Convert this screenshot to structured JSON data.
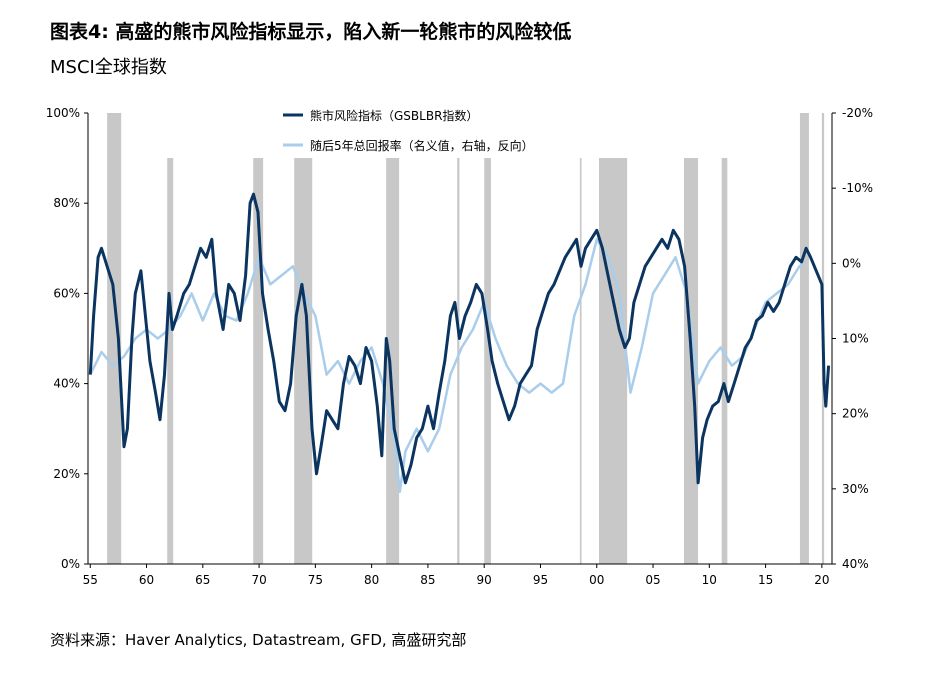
{
  "chart_data": {
    "type": "line",
    "title": "图表4: 高盛的熊市风险指标显示，陷入新一轮熊市的风险较低",
    "subtitle": "MSCI全球指数",
    "source": "资料来源：Haver Analytics, Datastream, GFD, 高盛研究部",
    "xlim": [
      1954.8,
      2020.9
    ],
    "xticks": [
      {
        "value": 1955,
        "label": "55"
      },
      {
        "value": 1960,
        "label": "60"
      },
      {
        "value": 1965,
        "label": "65"
      },
      {
        "value": 1970,
        "label": "70"
      },
      {
        "value": 1975,
        "label": "75"
      },
      {
        "value": 1980,
        "label": "80"
      },
      {
        "value": 1985,
        "label": "85"
      },
      {
        "value": 1990,
        "label": "90"
      },
      {
        "value": 1995,
        "label": "95"
      },
      {
        "value": 2000,
        "label": "00"
      },
      {
        "value": 2005,
        "label": "05"
      },
      {
        "value": 2010,
        "label": "10"
      },
      {
        "value": 2015,
        "label": "15"
      },
      {
        "value": 2020,
        "label": "20"
      }
    ],
    "ylim": [
      0,
      100
    ],
    "yticks": [
      {
        "value": 0,
        "label": "0%"
      },
      {
        "value": 20,
        "label": "20%"
      },
      {
        "value": 40,
        "label": "40%"
      },
      {
        "value": 60,
        "label": "60%"
      },
      {
        "value": 80,
        "label": "80%"
      },
      {
        "value": 100,
        "label": "100%"
      }
    ],
    "y2lim": [
      -20,
      40
    ],
    "y2_inverted": true,
    "y2ticks": [
      {
        "value": -20,
        "label": "-20%"
      },
      {
        "value": -10,
        "label": "-10%"
      },
      {
        "value": 0,
        "label": "0%"
      },
      {
        "value": 10,
        "label": "10%"
      },
      {
        "value": 20,
        "label": "20%"
      },
      {
        "value": 30,
        "label": "30%"
      },
      {
        "value": 40,
        "label": "40%"
      }
    ],
    "shade_color": "#c8c8c8",
    "shaded_periods": [
      [
        1956.5,
        1957.75
      ],
      [
        1961.84,
        1962.37
      ],
      [
        1969.48,
        1970.36
      ],
      [
        1973.12,
        1974.72
      ],
      [
        1981.29,
        1982.44
      ],
      [
        1987.6,
        1987.8
      ],
      [
        1990.0,
        1990.6
      ],
      [
        1998.5,
        1998.65
      ],
      [
        2000.2,
        2002.7
      ],
      [
        2007.75,
        2009.0
      ],
      [
        2011.1,
        2011.6
      ],
      [
        2018.05,
        2018.85
      ],
      [
        2020.0,
        2020.2
      ]
    ],
    "series": [
      {
        "name": "熊市风险指标（GSBLBR指数）",
        "color": "#0b3560",
        "x": [
          1955,
          1955.3,
          1955.7,
          1956,
          1956.5,
          1957,
          1957.5,
          1958,
          1958.3,
          1958.7,
          1959,
          1959.5,
          1959.9,
          1960.3,
          1960.8,
          1961.2,
          1961.6,
          1962,
          1962.3,
          1962.7,
          1963.3,
          1963.8,
          1964.3,
          1964.8,
          1965.3,
          1965.8,
          1966.2,
          1966.8,
          1967.3,
          1967.8,
          1968.3,
          1968.8,
          1969.2,
          1969.5,
          1969.9,
          1970.3,
          1970.8,
          1971.3,
          1971.8,
          1972.3,
          1972.8,
          1973.3,
          1973.8,
          1974.2,
          1974.7,
          1975.1,
          1975.5,
          1976,
          1976.5,
          1977,
          1977.5,
          1978,
          1978.5,
          1979,
          1979.5,
          1980,
          1980.5,
          1980.9,
          1981.3,
          1981.6,
          1982,
          1982.5,
          1983,
          1983.5,
          1984,
          1984.5,
          1985,
          1985.5,
          1986,
          1986.5,
          1987,
          1987.4,
          1987.8,
          1988.3,
          1988.8,
          1989.3,
          1989.8,
          1990.3,
          1990.7,
          1991.2,
          1991.7,
          1992.2,
          1992.7,
          1993.2,
          1993.7,
          1994.2,
          1994.7,
          1995.2,
          1995.7,
          1996.2,
          1996.7,
          1997.2,
          1997.7,
          1998.2,
          1998.6,
          1999,
          1999.5,
          2000,
          2000.5,
          2001,
          2001.5,
          2002,
          2002.5,
          2002.9,
          2003.3,
          2003.8,
          2004.3,
          2004.8,
          2005.3,
          2005.8,
          2006.3,
          2006.8,
          2007.3,
          2007.8,
          2008.3,
          2008.7,
          2009,
          2009.4,
          2009.8,
          2010.3,
          2010.8,
          2011.3,
          2011.7,
          2012.2,
          2012.7,
          2013.2,
          2013.7,
          2014.2,
          2014.7,
          2015.2,
          2015.7,
          2016.2,
          2016.7,
          2017.2,
          2017.7,
          2018.2,
          2018.6,
          2019,
          2019.5,
          2020,
          2020.2,
          2020.35,
          2020.6
        ],
        "values": [
          42,
          55,
          68,
          70,
          66,
          62,
          50,
          26,
          30,
          50,
          60,
          65,
          55,
          45,
          38,
          32,
          42,
          60,
          52,
          55,
          60,
          62,
          66,
          70,
          68,
          72,
          60,
          52,
          62,
          60,
          54,
          64,
          80,
          82,
          78,
          60,
          52,
          45,
          36,
          34,
          40,
          55,
          62,
          55,
          30,
          20,
          26,
          34,
          32,
          30,
          40,
          46,
          44,
          40,
          48,
          45,
          35,
          24,
          50,
          45,
          30,
          24,
          18,
          22,
          28,
          30,
          35,
          30,
          38,
          45,
          55,
          58,
          50,
          55,
          58,
          62,
          60,
          52,
          45,
          40,
          36,
          32,
          35,
          40,
          42,
          44,
          52,
          56,
          60,
          62,
          65,
          68,
          70,
          72,
          66,
          70,
          72,
          74,
          70,
          64,
          58,
          52,
          48,
          50,
          58,
          62,
          66,
          68,
          70,
          72,
          70,
          74,
          72,
          66,
          50,
          35,
          18,
          28,
          32,
          35,
          36,
          40,
          36,
          40,
          44,
          48,
          50,
          54,
          55,
          58,
          56,
          58,
          62,
          66,
          68,
          67,
          70,
          68,
          65,
          62,
          40,
          35,
          44
        ]
      },
      {
        "name": "随后5年总回报率（名义值，右轴，反向）",
        "color": "#a9cdea",
        "axis": "y2",
        "x": [
          1955,
          1956,
          1957,
          1958,
          1959,
          1960,
          1961,
          1962,
          1963,
          1964,
          1965,
          1966,
          1967,
          1968,
          1969,
          1970,
          1971,
          1972,
          1973,
          1974,
          1975,
          1976,
          1977,
          1978,
          1979,
          1980,
          1981,
          1982,
          1982.5,
          1983,
          1984,
          1985,
          1986,
          1987,
          1988,
          1989,
          1990,
          1991,
          1992,
          1993,
          1994,
          1995,
          1996,
          1997,
          1998,
          1999,
          2000,
          2001,
          2002,
          2003,
          2004,
          2005,
          2006,
          2007,
          2008,
          2009,
          2010,
          2011,
          2012,
          2013,
          2014,
          2015,
          2016,
          2017,
          2018,
          2018.5
        ],
        "values": [
          14.8,
          11.8,
          13.6,
          12.4,
          10,
          8.8,
          10,
          8.8,
          7,
          4,
          7.6,
          4,
          7,
          7.6,
          4,
          -0.8,
          2.8,
          1.6,
          0.4,
          4,
          7,
          14.8,
          13,
          16,
          13,
          11.2,
          16,
          23.2,
          30.4,
          25,
          22,
          25,
          22,
          14.8,
          11.2,
          8.8,
          5.2,
          10,
          13.6,
          16,
          17.2,
          16,
          17.2,
          16,
          7,
          2.8,
          -3.2,
          -0.8,
          4,
          17.2,
          11.2,
          4,
          1.6,
          -0.8,
          4,
          16,
          13,
          11.2,
          13.6,
          12.4,
          8.8,
          5.2,
          4,
          2.8,
          0.4,
          -0.2
        ]
      }
    ]
  }
}
